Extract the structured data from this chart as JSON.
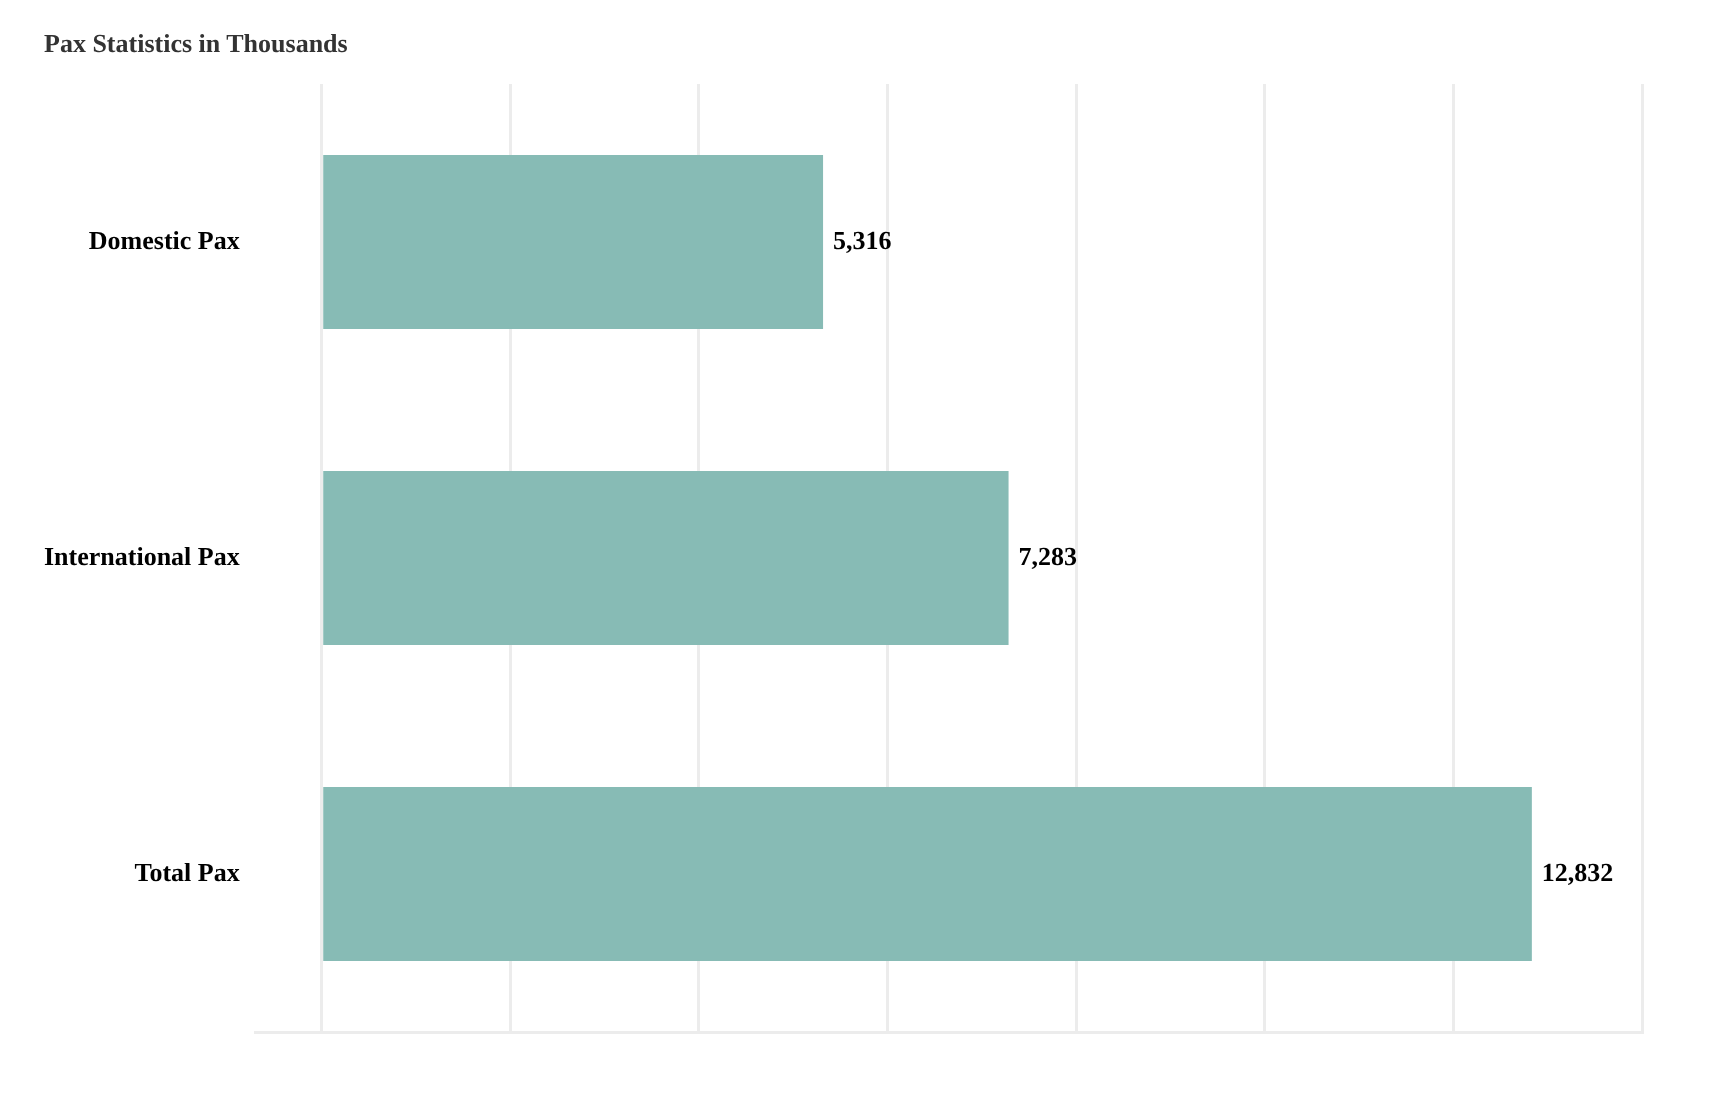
{
  "chart_data": {
    "type": "bar",
    "orientation": "horizontal",
    "title": "Pax Statistics in Thousands",
    "categories": [
      "Domestic Pax",
      "International Pax",
      "Total Pax"
    ],
    "values": [
      5316,
      7283,
      12832
    ],
    "color": "#87bbb5",
    "value_labels": [
      "5,316",
      "7,283",
      "12,832"
    ],
    "xlim": [
      -700,
      14000
    ],
    "xticks": [
      {
        "value": 0,
        "label": null
      },
      {
        "value": 2000,
        "label": null
      },
      {
        "value": 4000,
        "label": null
      },
      {
        "value": 6000,
        "label": null
      },
      {
        "value": 8000,
        "label": null
      },
      {
        "value": 10000,
        "label": null
      },
      {
        "value": 12000,
        "label": null
      },
      {
        "value": 14000,
        "label": null
      }
    ],
    "grid": "x",
    "tick_labels": "y",
    "legend": false
  }
}
